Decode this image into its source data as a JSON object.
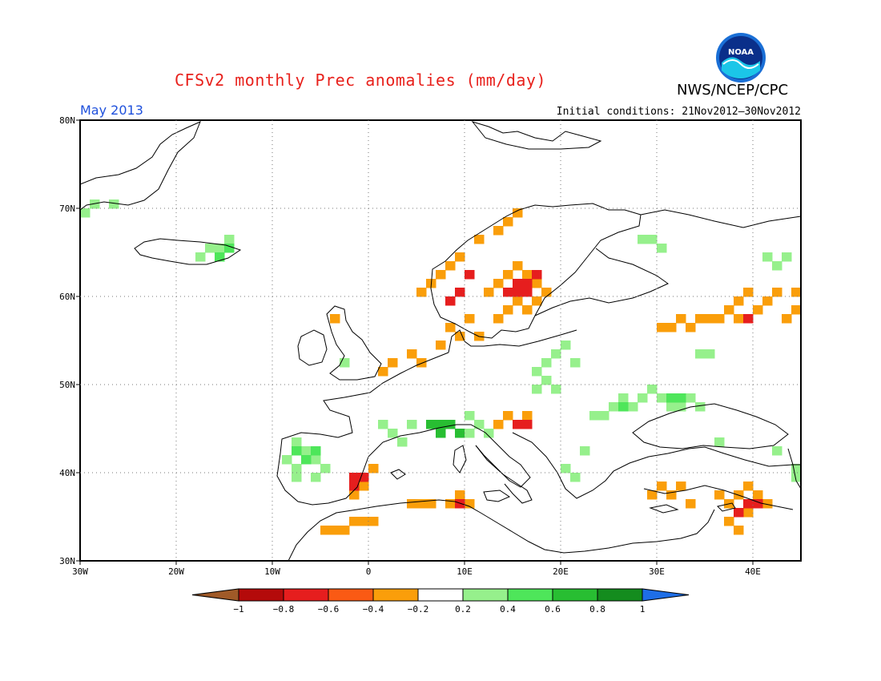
{
  "header": {
    "title": "CFSv2 monthly Prec anomalies (mm/day)",
    "agency": "NWS/NCEP/CPC",
    "month": "May 2013",
    "initial_conditions": "Initial conditions: 21Nov2012–30Nov2012",
    "logo_text": "NOAA"
  },
  "map": {
    "lon_range": [
      -30,
      45
    ],
    "lat_range": [
      30,
      80
    ],
    "lat_ticks": [
      "30N",
      "40N",
      "50N",
      "60N",
      "70N",
      "80N"
    ],
    "lon_ticks": [
      "30W",
      "20W",
      "10W",
      "0",
      "10E",
      "20E",
      "30E",
      "40E"
    ],
    "grid": "dotted"
  },
  "legend": {
    "labels": [
      "−1",
      "−0.8",
      "−0.6",
      "−0.4",
      "−0.2",
      "0.2",
      "0.4",
      "0.6",
      "0.8",
      "1"
    ],
    "colors": [
      "#a05a28",
      "#b40a0a",
      "#e61e1e",
      "#fa5a14",
      "#fa9e0a",
      "#ffffff",
      "#96f08c",
      "#4ee65a",
      "#28be32",
      "#148c1e",
      "#1e6ee6"
    ]
  },
  "anomaly_regions": [
    {
      "name": "norway-coast",
      "color": "#fa9e0a",
      "cells": [
        [
          5,
          60
        ],
        [
          6,
          61
        ],
        [
          7,
          62
        ],
        [
          8,
          63
        ],
        [
          9,
          64
        ],
        [
          11,
          66
        ],
        [
          13,
          67
        ],
        [
          14,
          68
        ],
        [
          15,
          69
        ]
      ]
    },
    {
      "name": "sweden-center",
      "color": "#fa9e0a",
      "cells": [
        [
          12,
          60
        ],
        [
          13,
          61
        ],
        [
          14,
          62
        ],
        [
          15,
          63
        ],
        [
          16,
          62
        ],
        [
          17,
          61
        ],
        [
          18,
          60
        ],
        [
          15,
          59
        ],
        [
          14,
          58
        ],
        [
          13,
          57
        ],
        [
          16,
          58
        ],
        [
          17,
          59
        ]
      ]
    },
    {
      "name": "sweden-core",
      "color": "#e61e1e",
      "cells": [
        [
          14,
          60
        ],
        [
          15,
          61
        ],
        [
          16,
          61
        ],
        [
          17,
          62
        ],
        [
          15,
          60
        ],
        [
          16,
          60
        ]
      ]
    },
    {
      "name": "norway-south",
      "color": "#e61e1e",
      "cells": [
        [
          8,
          59
        ],
        [
          9,
          60
        ],
        [
          10,
          62
        ]
      ]
    },
    {
      "name": "denmark",
      "color": "#fa9e0a",
      "cells": [
        [
          8,
          56
        ],
        [
          9,
          55
        ],
        [
          11,
          55
        ],
        [
          10,
          57
        ]
      ]
    },
    {
      "name": "benelux",
      "color": "#fa9e0a",
      "cells": [
        [
          1,
          51
        ],
        [
          2,
          52
        ],
        [
          4,
          53
        ],
        [
          5,
          52
        ],
        [
          7,
          54
        ],
        [
          -4,
          57
        ]
      ]
    },
    {
      "name": "iberia-east",
      "color": "#fa9e0a",
      "cells": [
        [
          -1,
          39
        ],
        [
          0,
          40
        ],
        [
          -2,
          37
        ],
        [
          -1,
          38
        ]
      ]
    },
    {
      "name": "iberia-east-core",
      "color": "#e61e1e",
      "cells": [
        [
          -2,
          38
        ],
        [
          -1,
          39
        ],
        [
          -2,
          39
        ]
      ]
    },
    {
      "name": "north-africa",
      "color": "#fa9e0a",
      "cells": [
        [
          -5,
          33
        ],
        [
          -4,
          33
        ],
        [
          -3,
          33
        ],
        [
          -2,
          34
        ],
        [
          -1,
          34
        ],
        [
          0,
          34
        ],
        [
          4,
          36
        ],
        [
          5,
          36
        ],
        [
          6,
          36
        ],
        [
          8,
          36
        ],
        [
          9,
          37
        ],
        [
          10,
          36
        ]
      ]
    },
    {
      "name": "tunisia-core",
      "color": "#e61e1e",
      "cells": [
        [
          9,
          36
        ]
      ]
    },
    {
      "name": "adriatic",
      "color": "#fa9e0a",
      "cells": [
        [
          13,
          45
        ],
        [
          14,
          46
        ],
        [
          15,
          45
        ],
        [
          16,
          46
        ]
      ]
    },
    {
      "name": "adriatic-core",
      "color": "#e61e1e",
      "cells": [
        [
          15,
          45
        ],
        [
          16,
          45
        ]
      ]
    },
    {
      "name": "russia",
      "color": "#fa9e0a",
      "cells": [
        [
          30,
          56
        ],
        [
          31,
          56
        ],
        [
          32,
          57
        ],
        [
          33,
          56
        ],
        [
          34,
          57
        ],
        [
          36,
          57
        ],
        [
          37,
          58
        ],
        [
          38,
          59
        ],
        [
          39,
          60
        ],
        [
          40,
          58
        ],
        [
          41,
          59
        ],
        [
          42,
          60
        ],
        [
          43,
          57
        ],
        [
          44,
          58
        ],
        [
          44,
          60
        ],
        [
          45,
          56
        ],
        [
          35,
          57
        ],
        [
          38,
          57
        ]
      ]
    },
    {
      "name": "russia-core",
      "color": "#e61e1e",
      "cells": [
        [
          39,
          57
        ]
      ]
    },
    {
      "name": "turkey",
      "color": "#fa9e0a",
      "cells": [
        [
          29,
          37
        ],
        [
          30,
          38
        ],
        [
          31,
          37
        ],
        [
          32,
          38
        ],
        [
          33,
          36
        ],
        [
          36,
          37
        ],
        [
          37,
          36
        ],
        [
          38,
          37
        ],
        [
          39,
          38
        ],
        [
          40,
          37
        ],
        [
          41,
          36
        ],
        [
          37,
          34
        ],
        [
          38,
          33
        ],
        [
          39,
          35
        ],
        [
          40,
          36
        ]
      ]
    },
    {
      "name": "turkey-core",
      "color": "#e61e1e",
      "cells": [
        [
          38,
          35
        ],
        [
          39,
          36
        ],
        [
          40,
          36
        ]
      ]
    },
    {
      "name": "green-iberia",
      "color": "#96f08c",
      "cells": [
        [
          -8,
          43
        ],
        [
          -7,
          42
        ],
        [
          -6,
          41
        ],
        [
          -5,
          40
        ],
        [
          -8,
          40
        ],
        [
          -9,
          41
        ],
        [
          -6,
          39
        ],
        [
          -8,
          39
        ]
      ]
    },
    {
      "name": "green-iberia-core",
      "color": "#4ee65a",
      "cells": [
        [
          -8,
          42
        ],
        [
          -7,
          41
        ],
        [
          -6,
          42
        ]
      ]
    },
    {
      "name": "green-alps",
      "color": "#96f08c",
      "cells": [
        [
          1,
          45
        ],
        [
          2,
          44
        ],
        [
          3,
          43
        ],
        [
          4,
          45
        ],
        [
          10,
          46
        ],
        [
          11,
          45
        ],
        [
          12,
          44
        ]
      ]
    },
    {
      "name": "green-alps-core",
      "color": "#28be32",
      "cells": [
        [
          6,
          45
        ],
        [
          7,
          44
        ],
        [
          8,
          45
        ],
        [
          9,
          44
        ],
        [
          7,
          45
        ]
      ]
    },
    {
      "name": "green-poland",
      "color": "#96f08c",
      "cells": [
        [
          17,
          51
        ],
        [
          18,
          52
        ],
        [
          19,
          53
        ],
        [
          20,
          54
        ],
        [
          21,
          52
        ],
        [
          17,
          49
        ],
        [
          18,
          50
        ],
        [
          19,
          49
        ]
      ]
    },
    {
      "name": "green-ukraine",
      "color": "#96f08c",
      "cells": [
        [
          26,
          48
        ],
        [
          27,
          47
        ],
        [
          28,
          48
        ],
        [
          29,
          49
        ],
        [
          30,
          48
        ],
        [
          31,
          47
        ],
        [
          25,
          47
        ],
        [
          24,
          46
        ],
        [
          23,
          46
        ],
        [
          32,
          47
        ],
        [
          33,
          48
        ],
        [
          34,
          47
        ]
      ]
    },
    {
      "name": "green-ukraine-core",
      "color": "#4ee65a",
      "cells": [
        [
          26,
          47
        ],
        [
          31,
          48
        ],
        [
          32,
          48
        ]
      ]
    },
    {
      "name": "green-north",
      "color": "#96f08c",
      "cells": [
        [
          28,
          66
        ],
        [
          29,
          66
        ],
        [
          30,
          65
        ],
        [
          41,
          64
        ],
        [
          42,
          63
        ],
        [
          43,
          64
        ],
        [
          -30,
          69
        ],
        [
          -29,
          70
        ],
        [
          -27,
          70
        ],
        [
          -18,
          64
        ],
        [
          -17,
          65
        ],
        [
          -16,
          65
        ],
        [
          -15,
          66
        ],
        [
          34,
          53
        ],
        [
          35,
          53
        ],
        [
          20,
          40
        ],
        [
          21,
          39
        ],
        [
          22,
          42
        ],
        [
          42,
          42
        ],
        [
          44,
          40
        ],
        [
          44,
          39
        ],
        [
          -3,
          52
        ],
        [
          10,
          44
        ],
        [
          36,
          43
        ]
      ]
    },
    {
      "name": "green-north-core",
      "color": "#4ee65a",
      "cells": [
        [
          -16,
          64
        ],
        [
          -15,
          65
        ]
      ]
    }
  ]
}
